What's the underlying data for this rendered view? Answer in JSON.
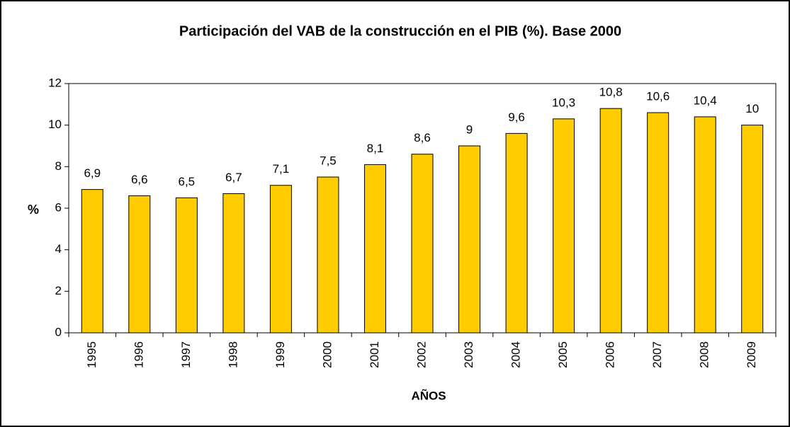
{
  "chart_data": {
    "type": "bar",
    "title": "Participación del VAB de la construcción en el PIB (%). Base 2000",
    "y_label": "%",
    "x_label": "AÑOS",
    "categories": [
      "1995",
      "1996",
      "1997",
      "1998",
      "1999",
      "2000",
      "2001",
      "2002",
      "2003",
      "2004",
      "2005",
      "2006",
      "2007",
      "2008",
      "2009"
    ],
    "values": [
      6.9,
      6.6,
      6.5,
      6.7,
      7.1,
      7.5,
      8.1,
      8.6,
      9,
      9.6,
      10.3,
      10.8,
      10.6,
      10.4,
      10
    ],
    "value_labels": [
      "6,9",
      "6,6",
      "6,5",
      "6,7",
      "7,1",
      "7,5",
      "8,1",
      "8,6",
      "9",
      "9,6",
      "10,3",
      "10,8",
      "10,6",
      "10,4",
      "10"
    ],
    "color": "#ffcc00",
    "ylim": [
      0,
      12
    ],
    "yticks": [
      0,
      2,
      4,
      6,
      8,
      10,
      12
    ],
    "grid": false
  }
}
